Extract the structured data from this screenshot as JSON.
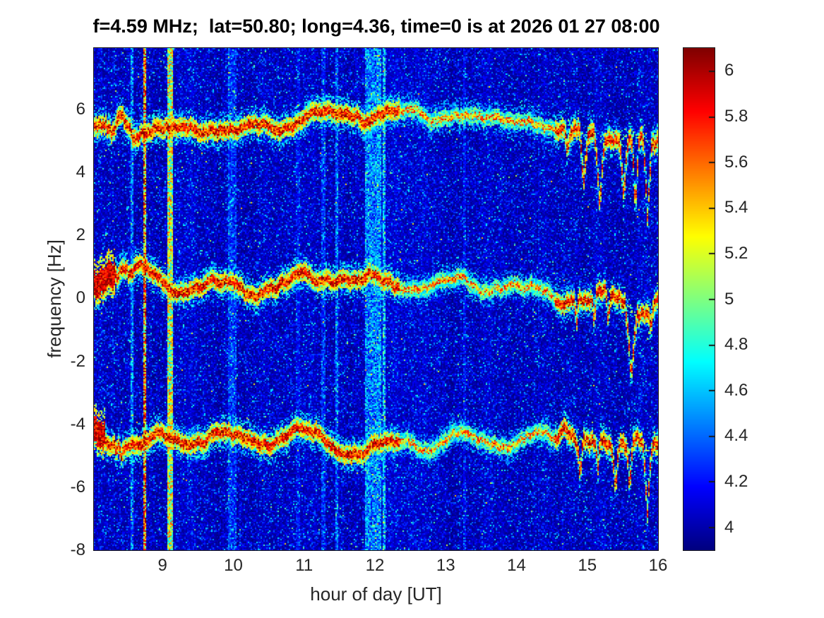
{
  "chart_data": {
    "type": "heatmap",
    "title": "f=4.59 MHz;  lat=50.80; long=4.36, time=0 is at 2026 01 27 08:00",
    "xlabel": "hour of day [UT]",
    "ylabel": "frequency [Hz]",
    "x_range": [
      8.03,
      16
    ],
    "y_range": [
      -8,
      7.95
    ],
    "x_ticks": [
      {
        "v": 9,
        "label": "9"
      },
      {
        "v": 10,
        "label": "10"
      },
      {
        "v": 11,
        "label": "11"
      },
      {
        "v": 12,
        "label": "12"
      },
      {
        "v": 13,
        "label": "13"
      },
      {
        "v": 14,
        "label": "14"
      },
      {
        "v": 15,
        "label": "15"
      },
      {
        "v": 16,
        "label": "16"
      }
    ],
    "y_ticks": [
      {
        "v": 6,
        "label": "6"
      },
      {
        "v": 4,
        "label": "4"
      },
      {
        "v": 2,
        "label": "2"
      },
      {
        "v": 0,
        "label": "0"
      },
      {
        "v": -2,
        "label": "-2"
      },
      {
        "v": -4,
        "label": "-4"
      },
      {
        "v": -6,
        "label": "-6"
      },
      {
        "v": -8,
        "label": "-8"
      }
    ],
    "colormap": "jet",
    "color_range": [
      3.9,
      6.1
    ],
    "colorbar_ticks": [
      {
        "v": 6,
        "label": "6"
      },
      {
        "v": 5.8,
        "label": "5.8"
      },
      {
        "v": 5.6,
        "label": "5.6"
      },
      {
        "v": 5.4,
        "label": "5.4"
      },
      {
        "v": 5.2,
        "label": "5.2"
      },
      {
        "v": 5,
        "label": "5"
      },
      {
        "v": 4.8,
        "label": "4.8"
      },
      {
        "v": 4.6,
        "label": "4.6"
      },
      {
        "v": 4.4,
        "label": "4.4"
      },
      {
        "v": 4.2,
        "label": "4.2"
      },
      {
        "v": 4,
        "label": "4"
      }
    ],
    "axis_text_color": "#262626",
    "background_noise": {
      "base": 3.93,
      "exp_scale": 0.16,
      "cap": 1.5
    },
    "faint_trace_interval": [
      12.35,
      14.55
    ],
    "traces": [
      {
        "name": "upper Doppler line",
        "center_freq": 5.5,
        "wiggle_amp": 0.16,
        "phase": 1.7,
        "left_flare_until": 8.7,
        "right_flare_from": 14.6,
        "left_blob_until": 0,
        "dives": [
          [
            14.72,
            0.06,
            1.0
          ],
          [
            14.95,
            0.07,
            1.6
          ],
          [
            15.18,
            0.08,
            2.1
          ],
          [
            15.52,
            0.07,
            1.9
          ],
          [
            15.68,
            0.06,
            2.3
          ],
          [
            15.85,
            0.07,
            2.5
          ]
        ]
      },
      {
        "name": "carrier line",
        "center_freq": 0.35,
        "wiggle_amp": 0.17,
        "phase": 4.1,
        "left_flare_until": 8.6,
        "right_flare_from": 14.6,
        "left_blob_until": 8.33,
        "dives": [
          [
            14.85,
            0.04,
            0.9
          ],
          [
            15.1,
            0.04,
            0.8
          ],
          [
            15.3,
            0.04,
            1.0
          ],
          [
            15.62,
            0.09,
            2.2
          ],
          [
            15.9,
            0.04,
            0.8
          ]
        ]
      },
      {
        "name": "lower Doppler line",
        "center_freq": -4.55,
        "wiggle_amp": 0.16,
        "phase": 2.9,
        "left_flare_until": 8.45,
        "right_flare_from": 14.6,
        "left_blob_until": 8.18,
        "dives": [
          [
            14.9,
            0.05,
            1.1
          ],
          [
            15.15,
            0.04,
            0.9
          ],
          [
            15.4,
            0.06,
            1.5
          ],
          [
            15.6,
            0.05,
            1.3
          ],
          [
            15.85,
            0.07,
            2.0
          ]
        ]
      }
    ],
    "vertical_bands": [
      {
        "t": 8.57,
        "w": 0.025,
        "boost": 0.5,
        "hot": false
      },
      {
        "t": 8.75,
        "w": 0.03,
        "boost": 1.5,
        "hot": true
      },
      {
        "t": 9.1,
        "w": 0.08,
        "boost": 1.15,
        "hot": true
      },
      {
        "t": 9.99,
        "w": 0.12,
        "boost": 0.3,
        "hot": false
      },
      {
        "t": 10.9,
        "w": 0.06,
        "boost": 0.18,
        "hot": false
      },
      {
        "t": 11.27,
        "w": 0.07,
        "boost": 0.32,
        "hot": false
      },
      {
        "t": 11.45,
        "w": 0.04,
        "boost": 0.4,
        "hot": false
      },
      {
        "t": 11.97,
        "w": 0.24,
        "boost": 0.5,
        "hot": false
      },
      {
        "t": 12.13,
        "w": 0.04,
        "boost": 0.65,
        "hot": false
      },
      {
        "t": 13.28,
        "w": 0.04,
        "boost": 0.2,
        "hot": false
      },
      {
        "t": 14.32,
        "w": 0.03,
        "boost": 0.15,
        "hot": false
      }
    ]
  }
}
